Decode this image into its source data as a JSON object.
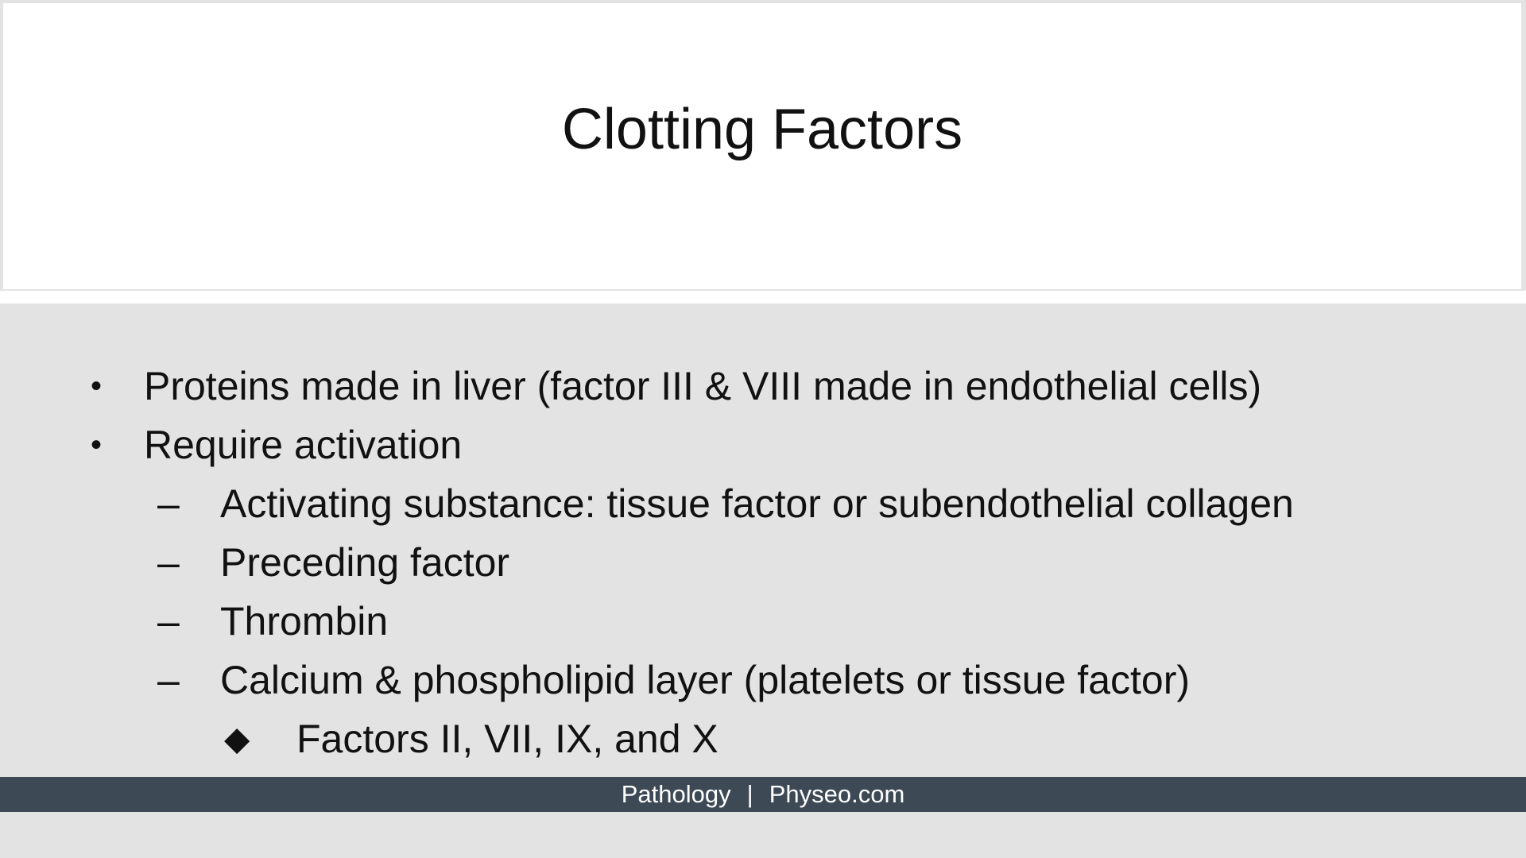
{
  "slide": {
    "title": "Clotting Factors",
    "bullets": [
      {
        "marker": "•",
        "text": "Proteins made in liver (factor III & VIII made in endothelial cells)"
      },
      {
        "marker": "•",
        "text": "Require activation"
      }
    ],
    "sub_bullets": [
      {
        "marker": "–",
        "text": "Activating substance: tissue factor or subendothelial collagen"
      },
      {
        "marker": "–",
        "text": "Preceding factor"
      },
      {
        "marker": "–",
        "text": "Thrombin"
      },
      {
        "marker": "–",
        "text": "Calcium & phospholipid layer (platelets or tissue factor)"
      }
    ],
    "sub_sub_bullets": [
      {
        "marker": "◆",
        "text": "Factors II, VII, IX, and X"
      }
    ],
    "footer": {
      "left": "Pathology",
      "separator": "|",
      "right": "Physeo.com"
    },
    "colors": {
      "background": "#e3e3e3",
      "title_panel": "#ffffff",
      "footer_bar": "#3d4a56",
      "text": "#111111",
      "footer_text": "#ffffff"
    }
  }
}
